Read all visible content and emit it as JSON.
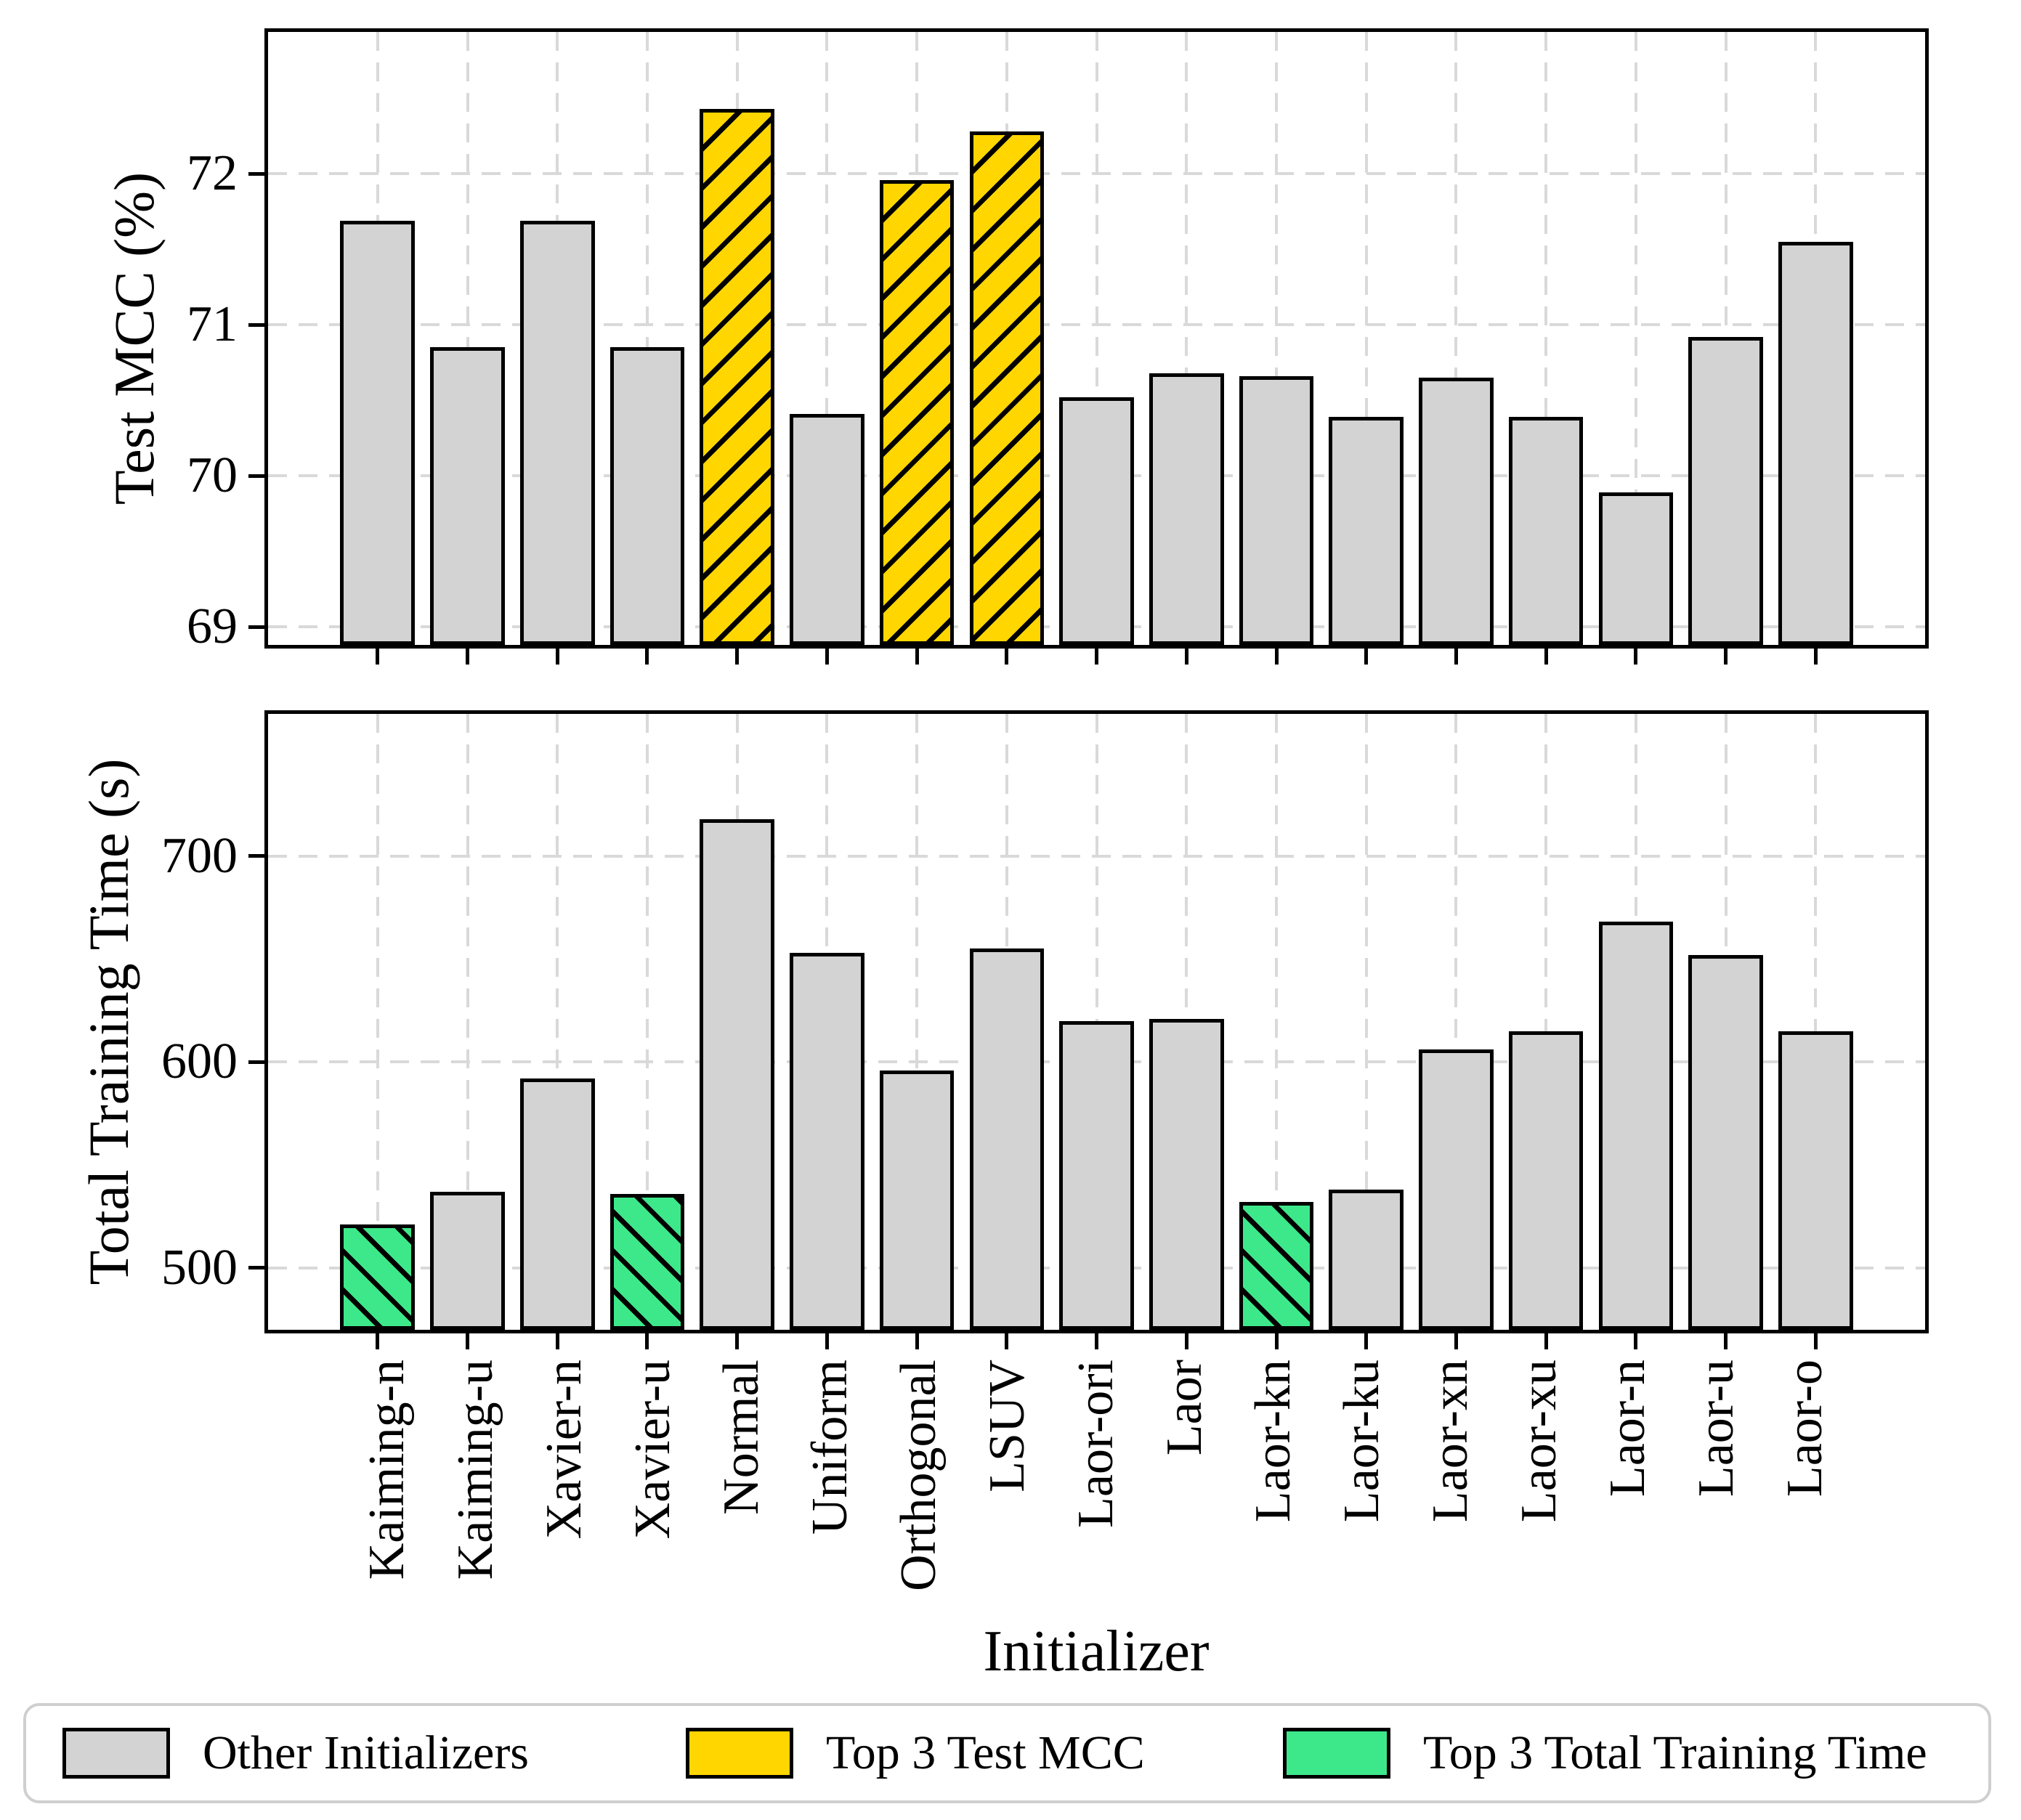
{
  "categories": [
    "Kaiming-n",
    "Kaiming-u",
    "Xavier-n",
    "Xavier-u",
    "Normal",
    "Uniform",
    "Orthogonal",
    "LSUV",
    "Laor-ori",
    "Laor",
    "Laor-kn",
    "Laor-ku",
    "Laor-xn",
    "Laor-xu",
    "Laor-n",
    "Laor-u",
    "Laor-o"
  ],
  "chart_data": [
    {
      "type": "bar",
      "panel": "top",
      "ylabel": "Test MCC (%)",
      "xlabel": "",
      "categories": [
        "Kaiming-n",
        "Kaiming-u",
        "Xavier-n",
        "Xavier-u",
        "Normal",
        "Uniform",
        "Orthogonal",
        "LSUV",
        "Laor-ori",
        "Laor",
        "Laor-kn",
        "Laor-ku",
        "Laor-xn",
        "Laor-xu",
        "Laor-n",
        "Laor-u",
        "Laor-o"
      ],
      "values": [
        71.69,
        70.85,
        71.69,
        70.85,
        72.43,
        70.41,
        71.96,
        72.28,
        70.52,
        70.68,
        70.66,
        70.39,
        70.65,
        70.39,
        69.89,
        70.92,
        71.55
      ],
      "yticks": [
        69,
        70,
        71,
        72
      ],
      "ylim": [
        68.88,
        72.94
      ],
      "grid": true,
      "highlight_indices": [
        4,
        6,
        7
      ],
      "highlight_legend_index": 1
    },
    {
      "type": "bar",
      "panel": "bottom",
      "ylabel": "Total Training Time (s)",
      "xlabel": "Initializer",
      "categories": [
        "Kaiming-n",
        "Kaiming-u",
        "Xavier-n",
        "Xavier-u",
        "Normal",
        "Uniform",
        "Orthogonal",
        "LSUV",
        "Laor-ori",
        "Laor",
        "Laor-kn",
        "Laor-ku",
        "Laor-xn",
        "Laor-xu",
        "Laor-n",
        "Laor-u",
        "Laor-o"
      ],
      "values": [
        521,
        537,
        592,
        536,
        718,
        653,
        596,
        655,
        620,
        621,
        532,
        538,
        606,
        615,
        668,
        652,
        615
      ],
      "yticks": [
        500,
        600,
        700
      ],
      "ylim": [
        470,
        769
      ],
      "grid": true,
      "highlight_indices": [
        0,
        3,
        10
      ],
      "highlight_legend_index": 2
    }
  ],
  "legend": {
    "position": "bottom",
    "items": [
      {
        "label": "Other Initializers",
        "color": "#d3d3d3",
        "hatch": "none"
      },
      {
        "label": "Top 3 Test MCC",
        "color": "#ffd600",
        "hatch": "/"
      },
      {
        "label": "Top 3 Total Training Time",
        "color": "#3de88a",
        "hatch": "\\"
      }
    ]
  },
  "colors": {
    "bar_edge": "#000000",
    "grid": "#d9d9d9",
    "axis": "#000000",
    "background": "#ffffff",
    "legend_border": "#cfcfcf"
  }
}
